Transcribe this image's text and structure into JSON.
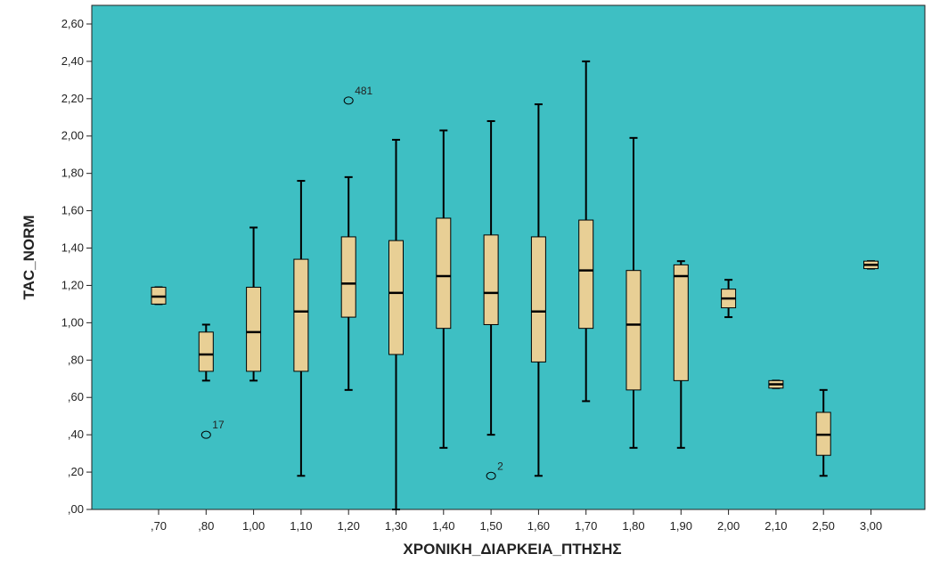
{
  "chart_data": {
    "type": "boxplot",
    "xlabel": "ΧΡΟΝΙΚΗ_ΔΙΑΡΚΕΙΑ_ΠΤΗΣΗΣ",
    "ylabel": "TAC_NORM",
    "ylim": [
      0,
      2.7
    ],
    "yticks": [
      {
        "value": 0.0,
        "label": ",00"
      },
      {
        "value": 0.2,
        "label": ",20"
      },
      {
        "value": 0.4,
        "label": ",40"
      },
      {
        "value": 0.6,
        "label": ",60"
      },
      {
        "value": 0.8,
        "label": ",80"
      },
      {
        "value": 1.0,
        "label": "1,00"
      },
      {
        "value": 1.2,
        "label": "1,20"
      },
      {
        "value": 1.4,
        "label": "1,40"
      },
      {
        "value": 1.6,
        "label": "1,60"
      },
      {
        "value": 1.8,
        "label": "1,80"
      },
      {
        "value": 2.0,
        "label": "2,00"
      },
      {
        "value": 2.2,
        "label": "2,20"
      },
      {
        "value": 2.4,
        "label": "2,40"
      },
      {
        "value": 2.6,
        "label": "2,60"
      }
    ],
    "categories": [
      ",70",
      ",80",
      "1,00",
      "1,10",
      "1,20",
      "1,30",
      "1,40",
      "1,50",
      "1,60",
      "1,70",
      "1,80",
      "1,90",
      "2,00",
      "2,10",
      "2,50",
      "3,00"
    ],
    "boxes": [
      {
        "category": ",70",
        "min": 1.1,
        "q1": 1.1,
        "median": 1.14,
        "q3": 1.19,
        "max": 1.19
      },
      {
        "category": ",80",
        "min": 0.69,
        "q1": 0.74,
        "median": 0.83,
        "q3": 0.95,
        "max": 0.99
      },
      {
        "category": "1,00",
        "min": 0.69,
        "q1": 0.74,
        "median": 0.95,
        "q3": 1.19,
        "max": 1.51
      },
      {
        "category": "1,10",
        "min": 0.18,
        "q1": 0.74,
        "median": 1.06,
        "q3": 1.34,
        "max": 1.76
      },
      {
        "category": "1,20",
        "min": 0.64,
        "q1": 1.03,
        "median": 1.21,
        "q3": 1.46,
        "max": 1.78
      },
      {
        "category": "1,30",
        "min": 0.0,
        "q1": 0.83,
        "median": 1.16,
        "q3": 1.44,
        "max": 1.98
      },
      {
        "category": "1,40",
        "min": 0.33,
        "q1": 0.97,
        "median": 1.25,
        "q3": 1.56,
        "max": 2.03
      },
      {
        "category": "1,50",
        "min": 0.4,
        "q1": 0.99,
        "median": 1.16,
        "q3": 1.47,
        "max": 2.08
      },
      {
        "category": "1,60",
        "min": 0.18,
        "q1": 0.79,
        "median": 1.06,
        "q3": 1.46,
        "max": 2.17
      },
      {
        "category": "1,70",
        "min": 0.58,
        "q1": 0.97,
        "median": 1.28,
        "q3": 1.55,
        "max": 2.4
      },
      {
        "category": "1,80",
        "min": 0.33,
        "q1": 0.64,
        "median": 0.99,
        "q3": 1.28,
        "max": 1.99
      },
      {
        "category": "1,90",
        "min": 0.33,
        "q1": 0.69,
        "median": 1.25,
        "q3": 1.31,
        "max": 1.33
      },
      {
        "category": "2,00",
        "min": 1.03,
        "q1": 1.08,
        "median": 1.13,
        "q3": 1.18,
        "max": 1.23
      },
      {
        "category": "2,10",
        "min": 0.65,
        "q1": 0.65,
        "median": 0.67,
        "q3": 0.69,
        "max": 0.69
      },
      {
        "category": "2,50",
        "min": 0.18,
        "q1": 0.29,
        "median": 0.4,
        "q3": 0.52,
        "max": 0.64
      },
      {
        "category": "3,00",
        "min": 1.29,
        "q1": 1.29,
        "median": 1.31,
        "q3": 1.33,
        "max": 1.33
      }
    ],
    "outliers": [
      {
        "category": "1,20",
        "value": 2.19,
        "label": "481"
      },
      {
        "category": ",80",
        "value": 0.4,
        "label": "17"
      },
      {
        "category": "1,50",
        "value": 0.18,
        "label": "2"
      }
    ],
    "grid": false,
    "colors": {
      "plot_background": "#3ebfc3",
      "box_fill": "#e8cf95",
      "line": "#000000"
    }
  }
}
